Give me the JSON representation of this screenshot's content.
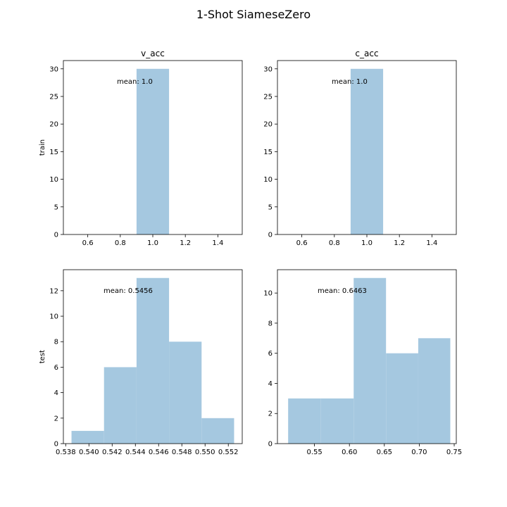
{
  "figure": {
    "title": "1-Shot SiameseZero",
    "bar_color": "#a5c8e0"
  },
  "chart_data": [
    {
      "type": "bar",
      "title": "v_acc",
      "ylabel": "train",
      "xlim": [
        0.45,
        1.55
      ],
      "ylim": [
        0,
        31.5
      ],
      "xticks": [
        0.6,
        0.8,
        1.0,
        1.2,
        1.4
      ],
      "xtick_labels": [
        "0.6",
        "0.8",
        "1.0",
        "1.2",
        "1.4"
      ],
      "yticks": [
        0,
        5,
        10,
        15,
        20,
        25,
        30
      ],
      "ytick_labels": [
        "0",
        "5",
        "10",
        "15",
        "20",
        "25",
        "30"
      ],
      "bins": [
        [
          0.9,
          1.1
        ]
      ],
      "values": [
        30
      ],
      "annotation": "mean: 1.0"
    },
    {
      "type": "bar",
      "title": "c_acc",
      "ylabel": "",
      "xlim": [
        0.45,
        1.55
      ],
      "ylim": [
        0,
        31.5
      ],
      "xticks": [
        0.6,
        0.8,
        1.0,
        1.2,
        1.4
      ],
      "xtick_labels": [
        "0.6",
        "0.8",
        "1.0",
        "1.2",
        "1.4"
      ],
      "yticks": [
        0,
        5,
        10,
        15,
        20,
        25,
        30
      ],
      "ytick_labels": [
        "0",
        "5",
        "10",
        "15",
        "20",
        "25",
        "30"
      ],
      "bins": [
        [
          0.9,
          1.1
        ]
      ],
      "values": [
        30
      ],
      "annotation": "mean: 1.0"
    },
    {
      "type": "bar",
      "title": "",
      "ylabel": "test",
      "xlim": [
        0.5378,
        0.5532
      ],
      "ylim": [
        0,
        13.65
      ],
      "xticks": [
        0.538,
        0.54,
        0.542,
        0.544,
        0.546,
        0.548,
        0.55,
        0.552
      ],
      "xtick_labels": [
        "0.538",
        "0.540",
        "0.542",
        "0.544",
        "0.546",
        "0.548",
        "0.550",
        "0.552"
      ],
      "yticks": [
        0,
        2,
        4,
        6,
        8,
        10,
        12
      ],
      "ytick_labels": [
        "0",
        "2",
        "4",
        "6",
        "8",
        "10",
        "12"
      ],
      "bins": [
        [
          0.5385,
          0.5413
        ],
        [
          0.5413,
          0.5441
        ],
        [
          0.5441,
          0.5469
        ],
        [
          0.5469,
          0.5497
        ],
        [
          0.5497,
          0.5525
        ]
      ],
      "values": [
        1,
        6,
        13,
        8,
        2
      ],
      "annotation": "mean: 0.5456"
    },
    {
      "type": "bar",
      "title": "",
      "ylabel": "",
      "xlim": [
        0.497,
        0.753
      ],
      "ylim": [
        0,
        11.55
      ],
      "xticks": [
        0.55,
        0.6,
        0.65,
        0.7,
        0.75
      ],
      "xtick_labels": [
        "0.55",
        "0.60",
        "0.65",
        "0.70",
        "0.75"
      ],
      "yticks": [
        0,
        2,
        4,
        6,
        8,
        10
      ],
      "ytick_labels": [
        "0",
        "2",
        "4",
        "6",
        "8",
        "10"
      ],
      "bins": [
        [
          0.5123,
          0.5593
        ],
        [
          0.5593,
          0.6061
        ],
        [
          0.6061,
          0.6524
        ],
        [
          0.6524,
          0.6985
        ],
        [
          0.6985,
          0.7444
        ]
      ],
      "values": [
        3,
        3,
        11,
        6,
        7
      ],
      "annotation": "mean: 0.6463"
    }
  ]
}
